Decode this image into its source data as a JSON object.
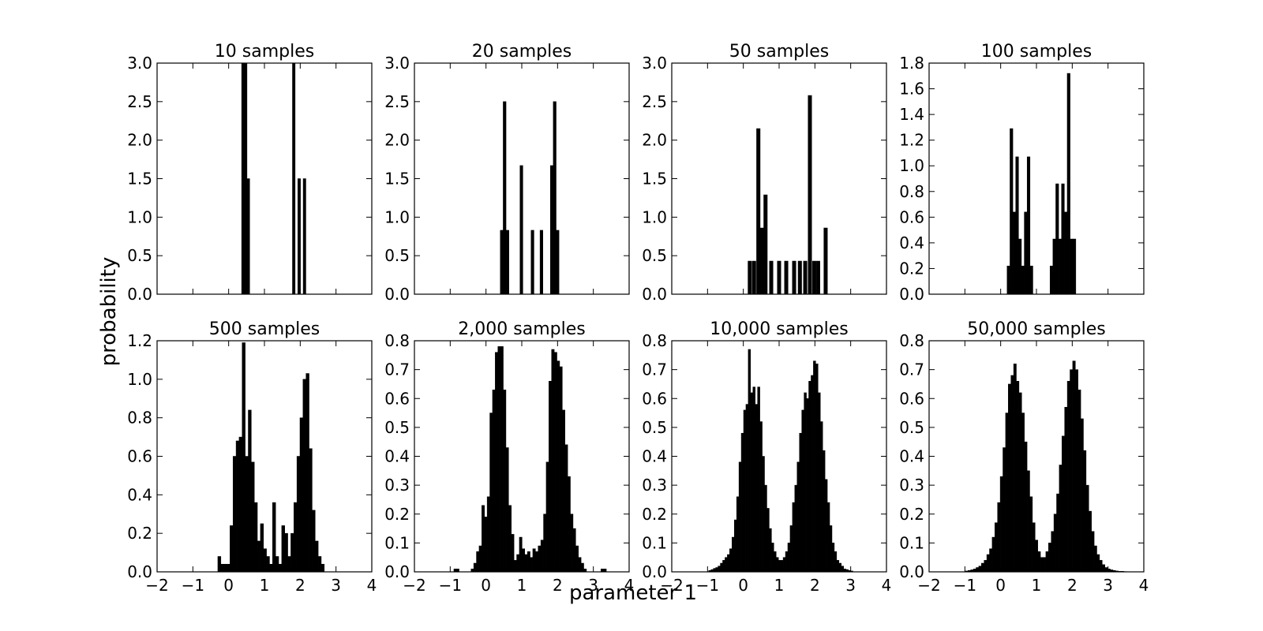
{
  "figure": {
    "xlabel": "parameter 1",
    "ylabel": "probability"
  },
  "chart_data": [
    {
      "type": "bar",
      "title": "10 samples",
      "xlim": [
        -2,
        4
      ],
      "ylim": [
        0,
        3.0
      ],
      "xticks": [],
      "yticks": [
        "0.0",
        "0.5",
        "1.0",
        "1.5",
        "2.0",
        "2.5",
        "3.0"
      ],
      "bin_width": 0.075,
      "x": [
        0.4,
        0.475,
        0.55,
        1.82,
        1.97,
        2.12
      ],
      "values": [
        3.0,
        3.0,
        1.5,
        3.0,
        1.5,
        1.5
      ]
    },
    {
      "type": "bar",
      "title": "20 samples",
      "xlim": [
        -2,
        4
      ],
      "ylim": [
        0,
        3.0
      ],
      "xticks": [],
      "yticks": [
        "0.0",
        "0.5",
        "1.0",
        "1.5",
        "2.0",
        "2.5",
        "3.0"
      ],
      "bin_width": 0.08,
      "x": [
        0.44,
        0.52,
        0.6,
        0.99,
        1.3,
        1.55,
        1.84,
        1.92,
        2.0
      ],
      "values": [
        0.83,
        2.5,
        0.83,
        1.67,
        0.83,
        0.83,
        1.67,
        2.5,
        0.83
      ]
    },
    {
      "type": "bar",
      "title": "50 samples",
      "xlim": [
        -2,
        4
      ],
      "ylim": [
        0,
        3.0
      ],
      "xticks": [],
      "yticks": [
        "0.0",
        "0.5",
        "1.0",
        "1.5",
        "2.0",
        "2.5",
        "3.0"
      ],
      "bin_width": 0.1,
      "x": [
        0.18,
        0.3,
        0.42,
        0.52,
        0.62,
        0.78,
        1.0,
        1.2,
        1.42,
        1.58,
        1.73,
        1.86,
        1.98,
        2.09,
        2.3
      ],
      "values": [
        0.43,
        0.43,
        2.15,
        0.86,
        1.29,
        0.43,
        0.43,
        0.43,
        0.43,
        0.43,
        0.43,
        2.58,
        0.43,
        0.43,
        0.86
      ]
    },
    {
      "type": "bar",
      "title": "100 samples",
      "xlim": [
        -2,
        4
      ],
      "ylim": [
        0,
        1.8
      ],
      "xticks": [],
      "yticks": [
        "0.0",
        "0.2",
        "0.4",
        "0.6",
        "0.8",
        "1.0",
        "1.2",
        "1.4",
        "1.6",
        "1.8"
      ],
      "bin_width": 0.08,
      "x": [
        0.22,
        0.3,
        0.38,
        0.46,
        0.54,
        0.62,
        0.7,
        0.78,
        0.86,
        0.94,
        1.42,
        1.5,
        1.58,
        1.66,
        1.74,
        1.82,
        1.9,
        1.98,
        2.06
      ],
      "values": [
        0.22,
        1.29,
        0.64,
        1.07,
        0.43,
        0.22,
        0.64,
        1.07,
        0.22,
        0.0,
        0.22,
        0.43,
        0.86,
        0.43,
        0.86,
        0.64,
        1.72,
        0.43,
        0.43
      ]
    },
    {
      "type": "bar",
      "title": "500 samples",
      "xlim": [
        -2,
        4
      ],
      "ylim": [
        0,
        1.2
      ],
      "xticks": [
        "−2",
        "−1",
        "0",
        "1",
        "2",
        "3",
        "4"
      ],
      "yticks": [
        "0.0",
        "0.2",
        "0.4",
        "0.6",
        "0.8",
        "1.0",
        "1.2"
      ],
      "bin_width": 0.085,
      "x": [
        -0.26,
        -0.175,
        -0.09,
        -0.005,
        0.08,
        0.165,
        0.25,
        0.335,
        0.42,
        0.505,
        0.59,
        0.675,
        0.76,
        0.845,
        0.93,
        1.015,
        1.1,
        1.185,
        1.27,
        1.355,
        1.44,
        1.525,
        1.61,
        1.695,
        1.78,
        1.865,
        1.95,
        2.035,
        2.12,
        2.205,
        2.29,
        2.375,
        2.46,
        2.545,
        2.63
      ],
      "values": [
        0.08,
        0.04,
        0.04,
        0.04,
        0.24,
        0.6,
        0.68,
        0.7,
        1.19,
        0.6,
        0.84,
        0.57,
        0.36,
        0.16,
        0.25,
        0.12,
        0.08,
        0.04,
        0.36,
        0.08,
        0.04,
        0.24,
        0.2,
        0.08,
        0.2,
        0.36,
        0.6,
        0.8,
        1.0,
        1.03,
        0.64,
        0.32,
        0.16,
        0.08,
        0.04
      ]
    },
    {
      "type": "bar",
      "title": "2,000 samples",
      "xlim": [
        -2,
        4
      ],
      "ylim": [
        0,
        0.8
      ],
      "xticks": [
        "−2",
        "−1",
        "0",
        "1",
        "2",
        "3",
        "4"
      ],
      "yticks": [
        "0.0",
        "0.1",
        "0.2",
        "0.3",
        "0.4",
        "0.5",
        "0.6",
        "0.7",
        "0.8"
      ],
      "bin_width": 0.075,
      "x": [
        -0.86,
        -0.79,
        -0.38,
        -0.305,
        -0.23,
        -0.155,
        -0.08,
        -0.005,
        0.07,
        0.145,
        0.22,
        0.295,
        0.37,
        0.445,
        0.52,
        0.595,
        0.67,
        0.745,
        0.82,
        0.895,
        0.97,
        1.045,
        1.12,
        1.195,
        1.27,
        1.345,
        1.42,
        1.495,
        1.57,
        1.645,
        1.72,
        1.795,
        1.87,
        1.945,
        2.02,
        2.095,
        2.17,
        2.245,
        2.32,
        2.395,
        2.47,
        2.545,
        2.62,
        2.695,
        2.77,
        3.25,
        3.325
      ],
      "values": [
        0.01,
        0.01,
        0.01,
        0.03,
        0.07,
        0.09,
        0.23,
        0.19,
        0.26,
        0.55,
        0.63,
        0.76,
        0.78,
        0.78,
        0.63,
        0.43,
        0.23,
        0.13,
        0.04,
        0.06,
        0.12,
        0.08,
        0.06,
        0.07,
        0.05,
        0.08,
        0.07,
        0.09,
        0.11,
        0.2,
        0.38,
        0.66,
        0.77,
        0.76,
        0.73,
        0.71,
        0.56,
        0.44,
        0.33,
        0.2,
        0.15,
        0.09,
        0.05,
        0.03,
        0.01,
        0.01,
        0.01
      ]
    },
    {
      "type": "bar",
      "title": "10,000 samples",
      "xlim": [
        -2,
        4
      ],
      "ylim": [
        0,
        0.8
      ],
      "xticks": [
        "−2",
        "−1",
        "0",
        "1",
        "2",
        "3",
        "4"
      ],
      "yticks": [
        "0.0",
        "0.1",
        "0.2",
        "0.3",
        "0.4",
        "0.5",
        "0.6",
        "0.7",
        "0.8"
      ],
      "bin_width": 0.065,
      "x": [
        -0.935,
        -0.87,
        -0.805,
        -0.74,
        -0.675,
        -0.61,
        -0.545,
        -0.48,
        -0.415,
        -0.35,
        -0.285,
        -0.22,
        -0.155,
        -0.09,
        -0.025,
        0.04,
        0.105,
        0.17,
        0.235,
        0.3,
        0.365,
        0.43,
        0.495,
        0.56,
        0.625,
        0.69,
        0.755,
        0.82,
        0.885,
        0.95,
        1.015,
        1.08,
        1.145,
        1.21,
        1.275,
        1.34,
        1.405,
        1.47,
        1.535,
        1.6,
        1.665,
        1.73,
        1.795,
        1.86,
        1.925,
        1.99,
        2.055,
        2.12,
        2.185,
        2.25,
        2.315,
        2.38,
        2.445,
        2.51,
        2.575,
        2.64,
        2.705,
        2.77,
        2.835,
        2.9,
        2.965,
        3.03
      ],
      "values": [
        0.005,
        0.008,
        0.012,
        0.015,
        0.02,
        0.03,
        0.04,
        0.05,
        0.06,
        0.08,
        0.12,
        0.18,
        0.26,
        0.38,
        0.48,
        0.56,
        0.58,
        0.77,
        0.62,
        0.64,
        0.58,
        0.64,
        0.52,
        0.4,
        0.3,
        0.22,
        0.15,
        0.1,
        0.07,
        0.05,
        0.04,
        0.04,
        0.05,
        0.07,
        0.1,
        0.16,
        0.24,
        0.3,
        0.38,
        0.48,
        0.56,
        0.62,
        0.6,
        0.66,
        0.68,
        0.73,
        0.72,
        0.62,
        0.52,
        0.42,
        0.32,
        0.24,
        0.16,
        0.1,
        0.07,
        0.04,
        0.03,
        0.02,
        0.01,
        0.008,
        0.005,
        0.003
      ]
    },
    {
      "type": "bar",
      "title": "50,000 samples",
      "xlim": [
        -2,
        4
      ],
      "ylim": [
        0,
        0.8
      ],
      "xticks": [
        "−2",
        "−1",
        "0",
        "1",
        "2",
        "3",
        "4"
      ],
      "yticks": [
        "0.0",
        "0.1",
        "0.2",
        "0.3",
        "0.4",
        "0.5",
        "0.6",
        "0.7",
        "0.8"
      ],
      "bin_width": 0.075,
      "x": [
        -0.95,
        -0.875,
        -0.8,
        -0.725,
        -0.65,
        -0.575,
        -0.5,
        -0.425,
        -0.35,
        -0.275,
        -0.2,
        -0.125,
        -0.05,
        0.025,
        0.1,
        0.175,
        0.25,
        0.325,
        0.4,
        0.475,
        0.55,
        0.625,
        0.7,
        0.775,
        0.85,
        0.925,
        1.0,
        1.075,
        1.15,
        1.225,
        1.3,
        1.375,
        1.45,
        1.525,
        1.6,
        1.675,
        1.75,
        1.825,
        1.9,
        1.975,
        2.05,
        2.125,
        2.2,
        2.275,
        2.35,
        2.425,
        2.5,
        2.575,
        2.65,
        2.725,
        2.8,
        2.875,
        2.95,
        3.025,
        3.1,
        3.175,
        3.25,
        3.325,
        3.4,
        3.475
      ],
      "values": [
        0.003,
        0.005,
        0.007,
        0.01,
        0.015,
        0.02,
        0.03,
        0.04,
        0.06,
        0.08,
        0.12,
        0.17,
        0.24,
        0.33,
        0.43,
        0.55,
        0.65,
        0.68,
        0.72,
        0.66,
        0.62,
        0.55,
        0.45,
        0.35,
        0.26,
        0.17,
        0.11,
        0.07,
        0.05,
        0.05,
        0.07,
        0.1,
        0.14,
        0.2,
        0.27,
        0.37,
        0.47,
        0.57,
        0.66,
        0.7,
        0.73,
        0.7,
        0.63,
        0.53,
        0.42,
        0.3,
        0.21,
        0.14,
        0.09,
        0.06,
        0.04,
        0.025,
        0.015,
        0.01,
        0.007,
        0.005,
        0.003,
        0.002,
        0.002,
        0.001
      ]
    }
  ]
}
